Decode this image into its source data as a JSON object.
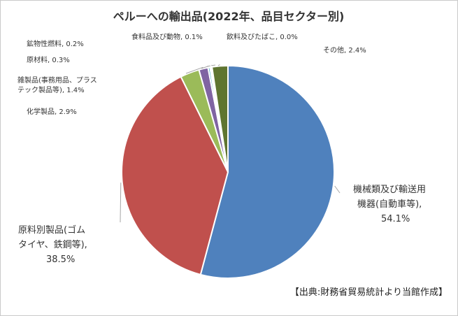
{
  "chart_data": {
    "type": "pie",
    "title": "ペルーへの輸出品(2022年、品目セクター別)",
    "slices": [
      {
        "lines": [
          "機械類及び輸送用",
          "機器(自動車等),",
          "54.1%"
        ],
        "value": 54.1,
        "color": "#4f81bd"
      },
      {
        "lines": [
          "原料別製品(ゴム",
          "タイヤ、鉄鋼等),",
          "38.5%"
        ],
        "value": 38.5,
        "color": "#c0504d"
      },
      {
        "lines": [
          "化学製品, 2.9%"
        ],
        "value": 2.9,
        "color": "#9bbb59"
      },
      {
        "lines": [
          "雑製品(事務用品、プラス",
          "テック製品等), 1.4%"
        ],
        "value": 1.4,
        "color": "#8064a2"
      },
      {
        "lines": [
          "原材料, 0.3%"
        ],
        "value": 0.3,
        "color": "#4bacc6"
      },
      {
        "lines": [
          "鉱物性燃料, 0.2%"
        ],
        "value": 0.2,
        "color": "#f79646"
      },
      {
        "lines": [
          "食料品及び動物, 0.1%"
        ],
        "value": 0.1,
        "color": "#2c4d75"
      },
      {
        "lines": [
          "飲料及びたばこ, 0.0%"
        ],
        "value": 0.0,
        "color": "#772c2a"
      },
      {
        "lines": [
          "その他, 2.4%"
        ],
        "value": 2.4,
        "color": "#5f7530"
      }
    ]
  },
  "source": "【出典:財務省貿易統計より当館作成】"
}
